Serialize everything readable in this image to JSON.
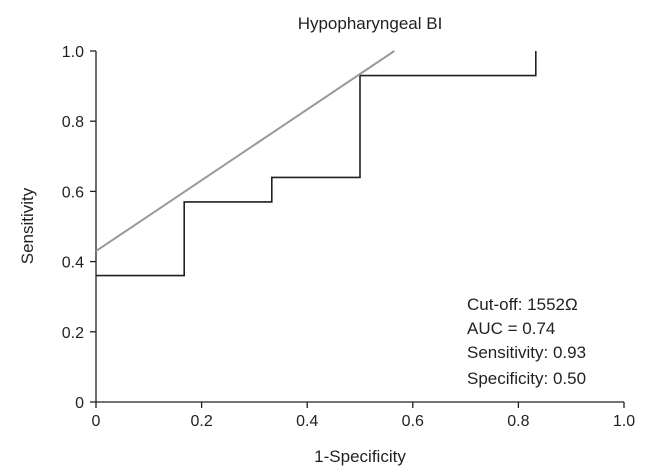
{
  "chart_data": {
    "type": "line",
    "title": "Hypopharyngeal BI",
    "xlabel": "1-Specificity",
    "ylabel": "Sensitivity",
    "xlim": [
      0,
      1.0
    ],
    "ylim": [
      0,
      1.0
    ],
    "x_ticks": [
      "0",
      "0.2",
      "0.4",
      "0.6",
      "0.8",
      "1.0"
    ],
    "y_ticks": [
      "0",
      "0.2",
      "0.4",
      "0.6",
      "0.8",
      "1.0"
    ],
    "grid": false,
    "legend": "none",
    "series": [
      {
        "style": "step",
        "color": "#231f20",
        "points": [
          {
            "x": 0,
            "y": 0.36
          },
          {
            "x": 0.167,
            "y": 0.36
          },
          {
            "x": 0.167,
            "y": 0.57
          },
          {
            "x": 0.333,
            "y": 0.57
          },
          {
            "x": 0.333,
            "y": 0.64
          },
          {
            "x": 0.5,
            "y": 0.64
          },
          {
            "x": 0.5,
            "y": 0.93
          },
          {
            "x": 0.833,
            "y": 0.93
          },
          {
            "x": 0.833,
            "y": 1.0
          }
        ]
      },
      {
        "style": "line",
        "color": "#999999",
        "points": [
          {
            "x": 0,
            "y": 0.43
          },
          {
            "x": 0.565,
            "y": 1.0
          }
        ]
      }
    ],
    "annotations": [
      "Cut-off: 1552Ω",
      "AUC = 0.74",
      "Sensitivity: 0.93",
      "Specificity: 0.50"
    ]
  }
}
